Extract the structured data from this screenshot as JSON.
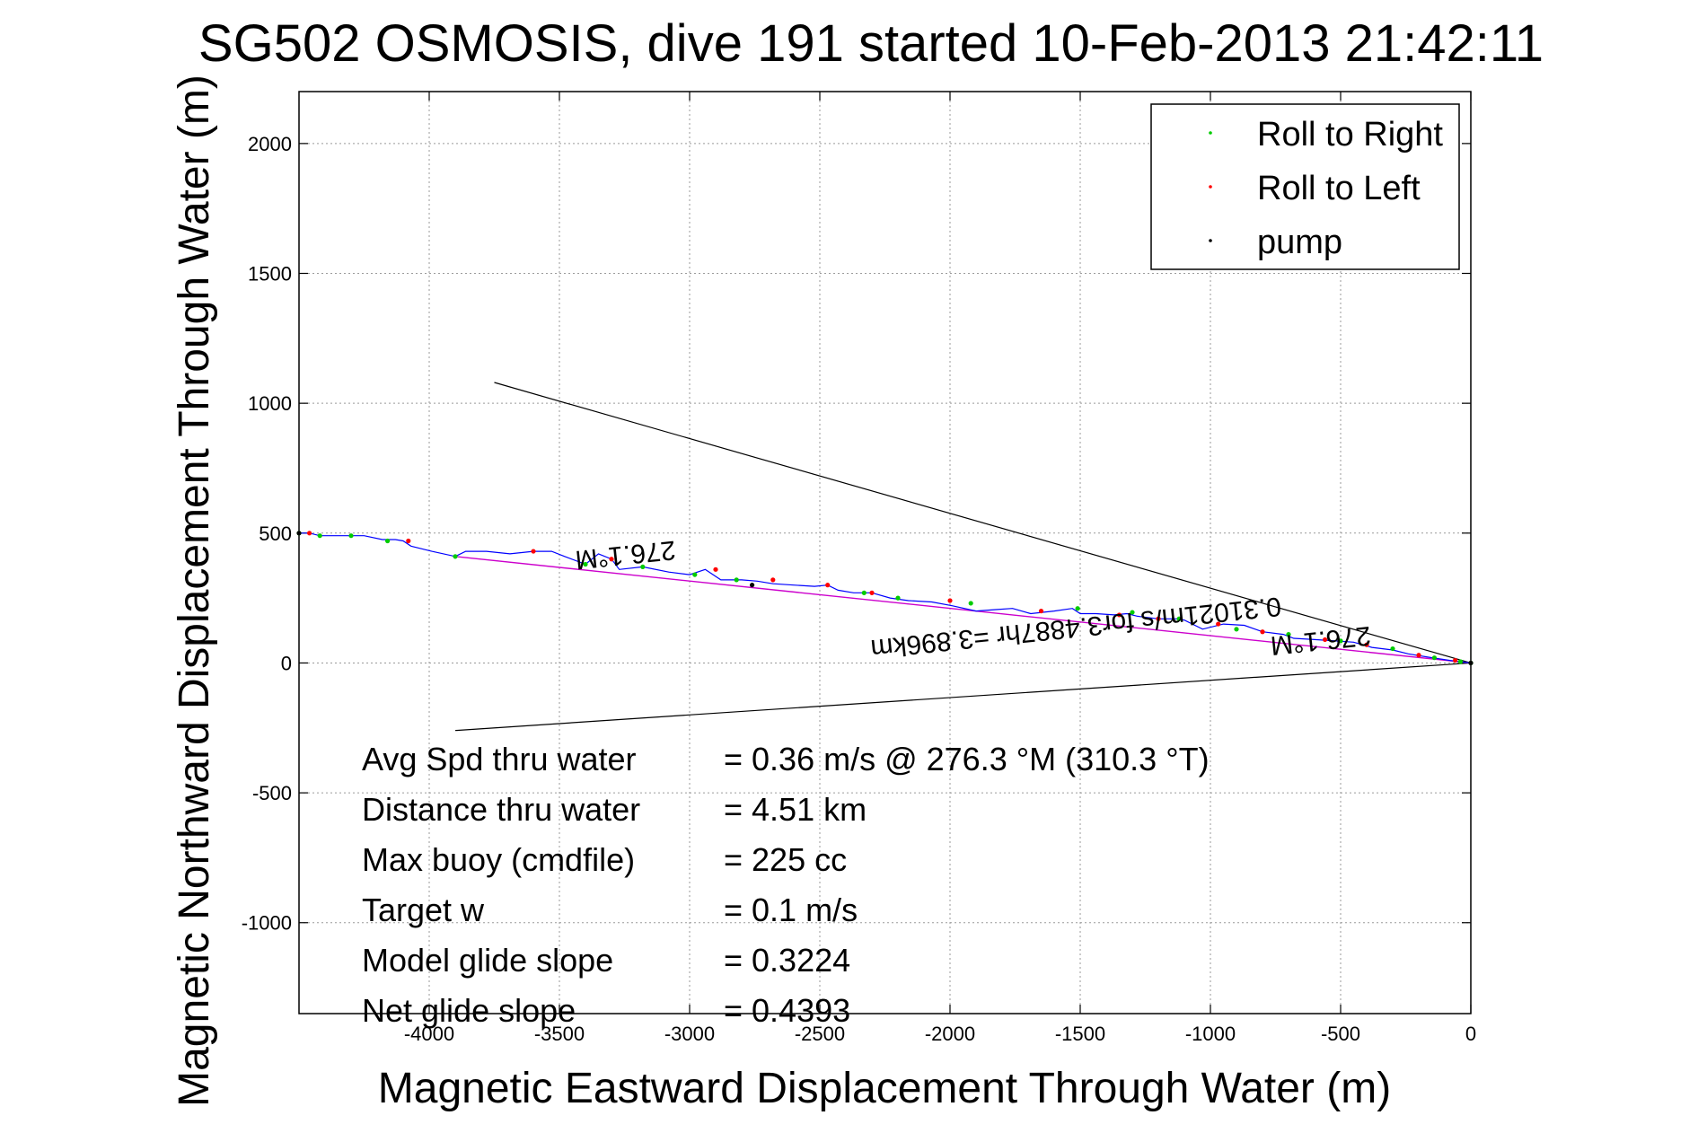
{
  "chart_data": {
    "type": "scatter",
    "title": "SG502 OSMOSIS, dive 191 started 10-Feb-2013 21:42:11",
    "xlabel": "Magnetic Eastward Displacement Through Water (m)",
    "ylabel": "Magnetic Northward Displacement Through Water (m)",
    "xlim": [
      -4500,
      0
    ],
    "ylim": [
      -1350,
      2200
    ],
    "xticks": [
      -4000,
      -3500,
      -3000,
      -2500,
      -2000,
      -1500,
      -1000,
      -500,
      0
    ],
    "yticks": [
      -1000,
      -500,
      0,
      500,
      1000,
      1500,
      2000
    ],
    "grid": true,
    "legend_position": "top-right",
    "legend": [
      {
        "label": "Roll to Right",
        "color": "#00cc00"
      },
      {
        "label": "Roll to Left",
        "color": "#ff0000"
      },
      {
        "label": "pump",
        "color": "#000000"
      }
    ],
    "track": {
      "name": "glider track",
      "color": "#0000ff",
      "x": [
        0,
        -80,
        -160,
        -240,
        -300,
        -380,
        -450,
        -520,
        -600,
        -680,
        -720,
        -800,
        -870,
        -950,
        -1030,
        -1100,
        -1130,
        -1200,
        -1280,
        -1320,
        -1370,
        -1440,
        -1500,
        -1530,
        -1600,
        -1690,
        -1760,
        -1830,
        -1900,
        -1990,
        -2070,
        -2160,
        -2230,
        -2300,
        -2370,
        -2430,
        -2470,
        -2520,
        -2600,
        -2680,
        -2740,
        -2800,
        -2880,
        -2940,
        -3000,
        -3080,
        -3180,
        -3270,
        -3300,
        -3350,
        -3400,
        -3480,
        -3530,
        -3600,
        -3690,
        -3780,
        -3860,
        -3900,
        -3990,
        -4070,
        -4100,
        -4130,
        -4180,
        -4250,
        -4320,
        -4360,
        -4420,
        -4460,
        -4500
      ],
      "y": [
        0,
        10,
        22,
        35,
        50,
        60,
        80,
        85,
        90,
        95,
        110,
        120,
        145,
        150,
        130,
        165,
        170,
        170,
        180,
        190,
        185,
        190,
        190,
        210,
        200,
        190,
        210,
        205,
        200,
        220,
        235,
        240,
        250,
        270,
        270,
        280,
        300,
        295,
        300,
        305,
        315,
        320,
        320,
        360,
        340,
        350,
        370,
        360,
        400,
        420,
        380,
        410,
        430,
        430,
        420,
        430,
        430,
        410,
        430,
        450,
        470,
        475,
        475,
        490,
        490,
        490,
        490,
        500,
        500
      ]
    },
    "roll_right_points": {
      "x": [
        -4500,
        -4420,
        -4300,
        -4160,
        -3900,
        -3400,
        -3180,
        -2980,
        -2820,
        -2330,
        -2200,
        -1920,
        -1510,
        -1300,
        -1120,
        -900,
        -700,
        -500,
        -300,
        -140,
        -40,
        0
      ],
      "y": [
        500,
        490,
        490,
        470,
        410,
        380,
        370,
        340,
        320,
        270,
        250,
        230,
        210,
        195,
        170,
        130,
        110,
        85,
        55,
        20,
        5,
        0
      ]
    },
    "roll_left_points": {
      "x": [
        -4460,
        -4080,
        -3600,
        -3300,
        -2900,
        -2680,
        -2470,
        -2300,
        -2000,
        -1650,
        -1350,
        -1200,
        -970,
        -800,
        -560,
        -400,
        -200,
        -60
      ],
      "y": [
        500,
        470,
        430,
        400,
        360,
        320,
        300,
        270,
        240,
        200,
        185,
        170,
        150,
        120,
        90,
        70,
        30,
        10
      ]
    },
    "pump_points": {
      "x": [
        -4500,
        -2760,
        0
      ],
      "y": [
        500,
        300,
        0
      ]
    },
    "direct_line": {
      "name": "net displacement",
      "color": "#cc00cc",
      "x": [
        0,
        -3900
      ],
      "y": [
        0,
        410
      ]
    },
    "wedge_lines": [
      {
        "x": [
          0,
          -3750
        ],
        "y": [
          0,
          1080
        ]
      },
      {
        "x": [
          0,
          -3900
        ],
        "y": [
          0,
          -260
        ]
      }
    ],
    "annotations": [
      {
        "text": "276.1°M",
        "x": -3250,
        "y": 450,
        "rotation": 174
      },
      {
        "text": "276.1°M",
        "x": -580,
        "y": 120,
        "rotation": 174
      },
      {
        "text": "0.31021m/s for3.4887hr =3.896km",
        "x": -1520,
        "y": 170,
        "rotation": 174
      }
    ],
    "stats": [
      {
        "label": "Avg Spd thru water",
        "value": "=  0.36 m/s @ 276.3 °M (310.3 °T)"
      },
      {
        "label": "Distance thru water",
        "value": "=  4.51 km"
      },
      {
        "label": "Max buoy (cmdfile)",
        "value": "= 225 cc"
      },
      {
        "label": "Target w",
        "value": "= 0.1 m/s"
      },
      {
        "label": "Model glide slope",
        "value": "= 0.3224"
      },
      {
        "label": "Net glide slope",
        "value": "= 0.4393"
      }
    ]
  }
}
